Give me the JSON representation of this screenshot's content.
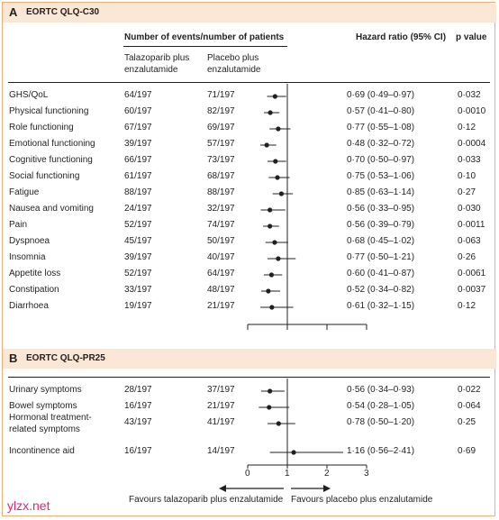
{
  "panelA": {
    "letter": "A",
    "title": "EORTC QLQ-C30",
    "header_events": "Number of events/number of patients",
    "header_hr": "Hazard ratio (95% CI)",
    "header_p": "p value",
    "col1": "Talazoparib plus enzalutamide",
    "col2": "Placebo plus enzalutamide",
    "rows": [
      {
        "label": "GHS/QoL",
        "tala": "64/197",
        "plac": "71/197",
        "hr_text": "0·69 (0·49–0·97)",
        "p": "0·032"
      },
      {
        "label": "Physical functioning",
        "tala": "60/197",
        "plac": "82/197",
        "hr_text": "0·57 (0·41–0·80)",
        "p": "0·0010"
      },
      {
        "label": "Role functioning",
        "tala": "67/197",
        "plac": "69/197",
        "hr_text": "0·77 (0·55–1·08)",
        "p": "0·12"
      },
      {
        "label": "Emotional functioning",
        "tala": "39/197",
        "plac": "57/197",
        "hr_text": "0·48 (0·32–0·72)",
        "p": "0·0004"
      },
      {
        "label": "Cognitive functioning",
        "tala": "66/197",
        "plac": "73/197",
        "hr_text": "0·70 (0·50–0·97)",
        "p": "0·033"
      },
      {
        "label": "Social functioning",
        "tala": "61/197",
        "plac": "68/197",
        "hr_text": "0·75 (0·53–1·06)",
        "p": "0·10"
      },
      {
        "label": "Fatigue",
        "tala": "88/197",
        "plac": "88/197",
        "hr_text": "0·85 (0·63–1·14)",
        "p": "0·27"
      },
      {
        "label": "Nausea and vomiting",
        "tala": "24/197",
        "plac": "32/197",
        "hr_text": "0·56 (0·33–0·95)",
        "p": "0·030"
      },
      {
        "label": "Pain",
        "tala": "52/197",
        "plac": "74/197",
        "hr_text": "0·56 (0·39–0·79)",
        "p": "0·0011"
      },
      {
        "label": "Dyspnoea",
        "tala": "45/197",
        "plac": "50/197",
        "hr_text": "0·68 (0·45–1·02)",
        "p": "0·063"
      },
      {
        "label": "Insomnia",
        "tala": "39/197",
        "plac": "40/197",
        "hr_text": "0·77 (0·50–1·21)",
        "p": "0·26"
      },
      {
        "label": "Appetite loss",
        "tala": "52/197",
        "plac": "64/197",
        "hr_text": "0·60 (0·41–0·87)",
        "p": "0·0061"
      },
      {
        "label": "Constipation",
        "tala": "33/197",
        "plac": "48/197",
        "hr_text": "0·52 (0·34–0·82)",
        "p": "0·0037"
      },
      {
        "label": "Diarrhoea",
        "tala": "19/197",
        "plac": "21/197",
        "hr_text": "0·61 (0·32–1·15)",
        "p": "0·12"
      }
    ]
  },
  "panelB": {
    "letter": "B",
    "title": "EORTC QLQ-PR25",
    "rows": [
      {
        "label": "Urinary symptoms",
        "tala": "28/197",
        "plac": "37/197",
        "hr_text": "0·56 (0·34–0·93)",
        "p": "0·022"
      },
      {
        "label": "Bowel symptoms",
        "tala": "16/197",
        "plac": "21/197",
        "hr_text": "0·54 (0·28–1·05)",
        "p": "0·064"
      },
      {
        "label": "Hormonal treatment-related symptoms",
        "tala": "43/197",
        "plac": "41/197",
        "hr_text": "0·78 (0·50–1·20)",
        "p": "0·25"
      },
      {
        "label": "Incontinence aid",
        "tala": "16/197",
        "plac": "14/197",
        "hr_text": "1·16 (0·56–2·41)",
        "p": "0·69"
      }
    ]
  },
  "axis": {
    "ticks": [
      "0",
      "1",
      "2",
      "3"
    ],
    "favours_left": "Favours talazoparib plus enzalutamide",
    "favours_right": "Favours placebo plus enzalutamide"
  },
  "watermark": "ylzx.net",
  "colors": {
    "panel_bg": "#fbe7d6",
    "frame": "#e8b27a",
    "ink": "#231f20",
    "watermark": "#e0237a"
  },
  "chart_data": [
    {
      "type": "forest",
      "title": "EORTC QLQ-C30",
      "xlim": [
        0,
        3
      ],
      "reference_line": 1,
      "categories": [
        "GHS/QoL",
        "Physical functioning",
        "Role functioning",
        "Emotional functioning",
        "Cognitive functioning",
        "Social functioning",
        "Fatigue",
        "Nausea and vomiting",
        "Pain",
        "Dyspnoea",
        "Insomnia",
        "Appetite loss",
        "Constipation",
        "Diarrhoea"
      ],
      "hr": [
        0.69,
        0.57,
        0.77,
        0.48,
        0.7,
        0.75,
        0.85,
        0.56,
        0.56,
        0.68,
        0.77,
        0.6,
        0.52,
        0.61
      ],
      "ci_low": [
        0.49,
        0.41,
        0.55,
        0.32,
        0.5,
        0.53,
        0.63,
        0.33,
        0.39,
        0.45,
        0.5,
        0.41,
        0.34,
        0.32
      ],
      "ci_high": [
        0.97,
        0.8,
        1.08,
        0.72,
        0.97,
        1.06,
        1.14,
        0.95,
        0.79,
        1.02,
        1.21,
        0.87,
        0.82,
        1.15
      ]
    },
    {
      "type": "forest",
      "title": "EORTC QLQ-PR25",
      "xlim": [
        0,
        3
      ],
      "reference_line": 1,
      "categories": [
        "Urinary symptoms",
        "Bowel symptoms",
        "Hormonal treatment-related symptoms",
        "Incontinence aid"
      ],
      "hr": [
        0.56,
        0.54,
        0.78,
        1.16
      ],
      "ci_low": [
        0.34,
        0.28,
        0.5,
        0.56
      ],
      "ci_high": [
        0.93,
        1.05,
        1.2,
        2.41
      ]
    }
  ]
}
